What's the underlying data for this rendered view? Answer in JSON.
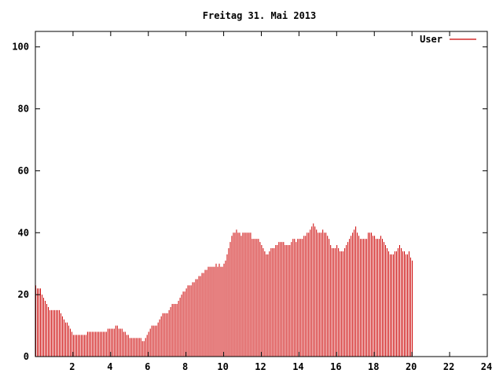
{
  "chart_data": {
    "type": "bar",
    "title": "Freitag 31. Mai 2013",
    "xlabel": "",
    "ylabel": "",
    "xlim": [
      0,
      24
    ],
    "ylim": [
      0,
      105
    ],
    "x_ticks": [
      "2",
      "4",
      "6",
      "8",
      "10",
      "12",
      "14",
      "16",
      "18",
      "20",
      "22",
      "24"
    ],
    "y_ticks": [
      "0",
      "20",
      "40",
      "60",
      "80",
      "100"
    ],
    "grid": false,
    "legend": {
      "position": "top-right"
    },
    "colors": {
      "series": "#cc0000",
      "axis": "#000000",
      "background": "#ffffff"
    },
    "series": [
      {
        "name": "User",
        "x_start": 0,
        "x_step": 0.0833,
        "values": [
          23,
          22,
          22,
          22,
          20,
          19,
          18,
          17,
          16,
          15,
          15,
          15,
          15,
          15,
          15,
          15,
          14,
          13,
          12,
          11,
          11,
          10,
          9,
          8,
          7,
          7,
          7,
          7,
          7,
          7,
          7,
          7,
          7,
          8,
          8,
          8,
          8,
          8,
          8,
          8,
          8,
          8,
          8,
          8,
          8,
          8,
          9,
          9,
          9,
          9,
          9,
          10,
          10,
          9,
          9,
          9,
          8,
          8,
          7,
          7,
          6,
          6,
          6,
          6,
          6,
          6,
          6,
          6,
          5,
          5,
          6,
          7,
          8,
          9,
          10,
          10,
          10,
          10,
          11,
          12,
          13,
          14,
          14,
          14,
          14,
          15,
          16,
          17,
          17,
          17,
          17,
          18,
          19,
          20,
          21,
          21,
          22,
          23,
          23,
          23,
          24,
          24,
          25,
          25,
          26,
          26,
          27,
          27,
          28,
          28,
          29,
          29,
          29,
          29,
          29,
          30,
          29,
          30,
          29,
          29,
          30,
          31,
          33,
          35,
          37,
          39,
          40,
          40,
          41,
          40,
          40,
          39,
          40,
          40,
          40,
          40,
          40,
          40,
          38,
          38,
          38,
          38,
          38,
          37,
          36,
          35,
          34,
          33,
          33,
          34,
          35,
          35,
          35,
          36,
          36,
          37,
          37,
          37,
          37,
          36,
          36,
          36,
          36,
          37,
          38,
          38,
          37,
          38,
          38,
          38,
          38,
          39,
          39,
          40,
          40,
          41,
          42,
          43,
          42,
          41,
          40,
          40,
          40,
          41,
          40,
          40,
          39,
          38,
          36,
          35,
          35,
          35,
          36,
          35,
          34,
          34,
          34,
          35,
          36,
          37,
          38,
          39,
          40,
          41,
          42,
          40,
          39,
          38,
          38,
          38,
          38,
          38,
          40,
          40,
          40,
          39,
          39,
          38,
          38,
          38,
          39,
          38,
          37,
          36,
          35,
          34,
          33,
          33,
          33,
          34,
          34,
          35,
          36,
          35,
          34,
          34,
          33,
          33,
          34,
          32,
          31
        ]
      }
    ]
  }
}
